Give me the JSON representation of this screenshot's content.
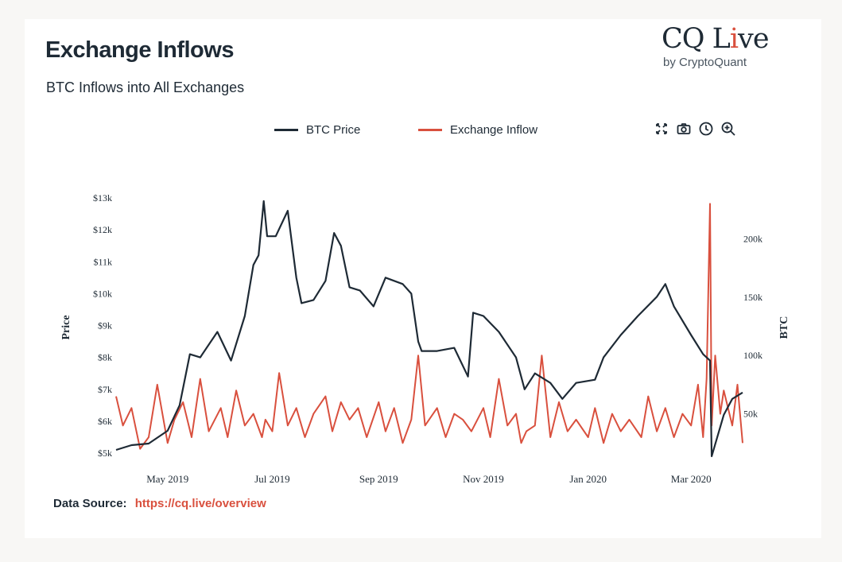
{
  "header": {
    "title": "Exchange Inflows",
    "subtitle": "BTC Inflows into All Exchanges"
  },
  "logo": {
    "main_a": "CQ L",
    "main_b": "i",
    "main_c": "ve",
    "sub": "by CryptoQuant"
  },
  "toolbar": {
    "icons": [
      "expand-icon",
      "camera-icon",
      "clock-icon",
      "zoom-in-icon"
    ]
  },
  "footer": {
    "label": "Data Source:",
    "link": "https://cq.live/overview"
  },
  "colors": {
    "price": "#1e2a35",
    "inflow": "#d9503e",
    "accent": "#d9503e"
  },
  "chart_data": {
    "type": "line",
    "ylabel_left": "Price",
    "ylabel_right": "BTC",
    "legend_position": "top-center",
    "grid": false,
    "x_ticks": [
      "May 2019",
      "Jul 2019",
      "Sep 2019",
      "Nov 2019",
      "Jan 2020",
      "Mar 2020"
    ],
    "y_left_ticks": [
      "$5k",
      "$6k",
      "$7k",
      "$8k",
      "$9k",
      "$10k",
      "$11k",
      "$12k",
      "$13k"
    ],
    "y_left_range": [
      5000,
      13000
    ],
    "y_right_ticks": [
      "50k",
      "100k",
      "150k",
      "200k"
    ],
    "y_right_range": [
      0,
      250000
    ],
    "series": [
      {
        "name": "BTC Price",
        "axis": "left",
        "x": [
          "2019-04-01",
          "2019-04-10",
          "2019-04-20",
          "2019-05-01",
          "2019-05-08",
          "2019-05-14",
          "2019-05-20",
          "2019-05-30",
          "2019-06-07",
          "2019-06-15",
          "2019-06-20",
          "2019-06-23",
          "2019-06-26",
          "2019-06-28",
          "2019-07-03",
          "2019-07-10",
          "2019-07-15",
          "2019-07-18",
          "2019-07-25",
          "2019-08-01",
          "2019-08-06",
          "2019-08-10",
          "2019-08-15",
          "2019-08-21",
          "2019-08-29",
          "2019-09-05",
          "2019-09-15",
          "2019-09-20",
          "2019-09-24",
          "2019-09-26",
          "2019-10-05",
          "2019-10-15",
          "2019-10-23",
          "2019-10-26",
          "2019-11-01",
          "2019-11-10",
          "2019-11-20",
          "2019-11-25",
          "2019-12-01",
          "2019-12-10",
          "2019-12-17",
          "2019-12-25",
          "2020-01-05",
          "2020-01-10",
          "2020-01-20",
          "2020-01-30",
          "2020-02-10",
          "2020-02-15",
          "2020-02-20",
          "2020-03-01",
          "2020-03-08",
          "2020-03-12",
          "2020-03-13",
          "2020-03-20",
          "2020-03-25",
          "2020-03-31"
        ],
        "values": [
          5100,
          5250,
          5300,
          5700,
          6500,
          8100,
          8000,
          8800,
          7900,
          9300,
          10900,
          11200,
          12900,
          11800,
          11800,
          12600,
          10500,
          9700,
          9800,
          10400,
          11900,
          11500,
          10200,
          10100,
          9600,
          10500,
          10300,
          10000,
          8500,
          8200,
          8200,
          8300,
          7400,
          9400,
          9300,
          8800,
          8000,
          7000,
          7500,
          7200,
          6700,
          7200,
          7300,
          8000,
          8700,
          9300,
          9900,
          10300,
          9600,
          8700,
          8100,
          7900,
          4900,
          6200,
          6700,
          6900
        ]
      },
      {
        "name": "Exchange Inflow",
        "axis": "right",
        "x": [
          "2019-04-01",
          "2019-04-05",
          "2019-04-10",
          "2019-04-15",
          "2019-04-20",
          "2019-04-25",
          "2019-05-01",
          "2019-05-05",
          "2019-05-10",
          "2019-05-15",
          "2019-05-20",
          "2019-05-25",
          "2019-06-01",
          "2019-06-05",
          "2019-06-10",
          "2019-06-15",
          "2019-06-20",
          "2019-06-25",
          "2019-06-27",
          "2019-07-01",
          "2019-07-05",
          "2019-07-10",
          "2019-07-15",
          "2019-07-20",
          "2019-07-25",
          "2019-08-01",
          "2019-08-05",
          "2019-08-10",
          "2019-08-15",
          "2019-08-20",
          "2019-08-25",
          "2019-09-01",
          "2019-09-05",
          "2019-09-10",
          "2019-09-15",
          "2019-09-20",
          "2019-09-24",
          "2019-09-28",
          "2019-10-05",
          "2019-10-10",
          "2019-10-15",
          "2019-10-20",
          "2019-10-25",
          "2019-11-01",
          "2019-11-05",
          "2019-11-10",
          "2019-11-15",
          "2019-11-20",
          "2019-11-23",
          "2019-11-26",
          "2019-12-01",
          "2019-12-05",
          "2019-12-10",
          "2019-12-15",
          "2019-12-20",
          "2019-12-25",
          "2020-01-01",
          "2020-01-05",
          "2020-01-10",
          "2020-01-15",
          "2020-01-20",
          "2020-01-25",
          "2020-02-01",
          "2020-02-05",
          "2020-02-10",
          "2020-02-15",
          "2020-02-20",
          "2020-02-25",
          "2020-03-01",
          "2020-03-05",
          "2020-03-08",
          "2020-03-10",
          "2020-03-12",
          "2020-03-13",
          "2020-03-15",
          "2020-03-18",
          "2020-03-20",
          "2020-03-25",
          "2020-03-28",
          "2020-03-31"
        ],
        "values": [
          65000,
          40000,
          55000,
          20000,
          30000,
          75000,
          25000,
          45000,
          60000,
          30000,
          80000,
          35000,
          55000,
          30000,
          70000,
          40000,
          50000,
          30000,
          45000,
          35000,
          85000,
          40000,
          55000,
          30000,
          50000,
          65000,
          35000,
          60000,
          45000,
          55000,
          30000,
          60000,
          35000,
          55000,
          25000,
          45000,
          100000,
          40000,
          55000,
          30000,
          50000,
          45000,
          35000,
          55000,
          30000,
          80000,
          40000,
          50000,
          25000,
          35000,
          40000,
          100000,
          30000,
          60000,
          35000,
          45000,
          30000,
          55000,
          25000,
          50000,
          35000,
          45000,
          30000,
          65000,
          35000,
          55000,
          30000,
          50000,
          40000,
          75000,
          30000,
          80000,
          230000,
          40000,
          100000,
          50000,
          70000,
          40000,
          75000,
          25000
        ]
      }
    ]
  }
}
